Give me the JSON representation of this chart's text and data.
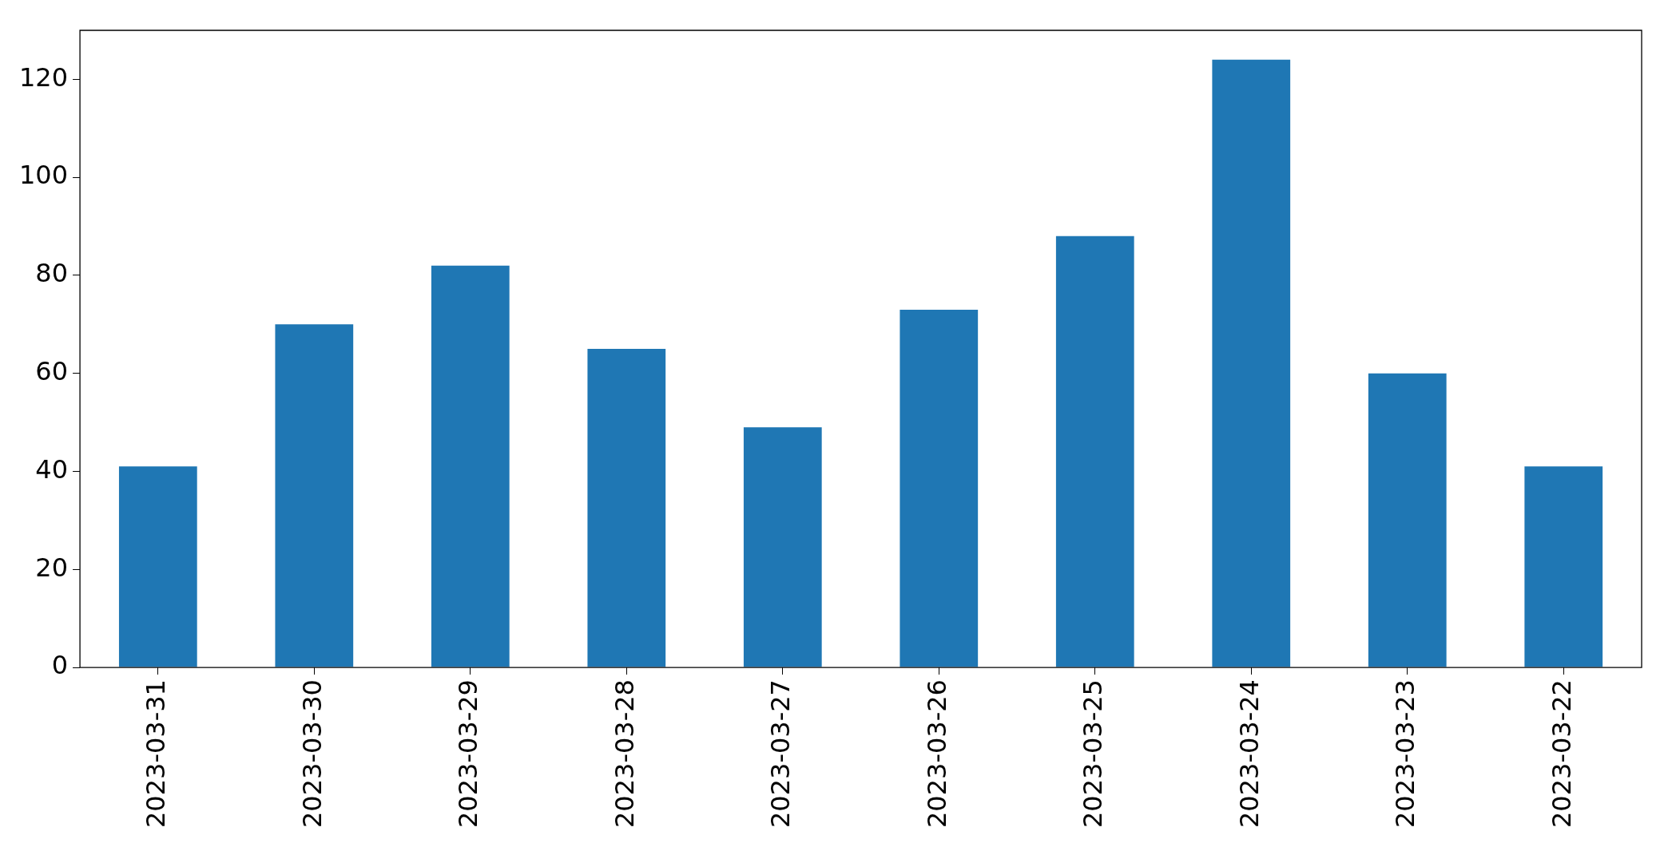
{
  "chart_data": {
    "type": "bar",
    "categories": [
      "2023-03-31",
      "2023-03-30",
      "2023-03-29",
      "2023-03-28",
      "2023-03-27",
      "2023-03-26",
      "2023-03-25",
      "2023-03-24",
      "2023-03-23",
      "2023-03-22"
    ],
    "values": [
      41,
      70,
      82,
      65,
      49,
      73,
      88,
      124,
      60,
      41
    ],
    "color": "#1f77b4",
    "ylim": [
      0,
      130
    ],
    "yticks": [
      0,
      20,
      40,
      60,
      80,
      100,
      120
    ],
    "legend": false
  }
}
